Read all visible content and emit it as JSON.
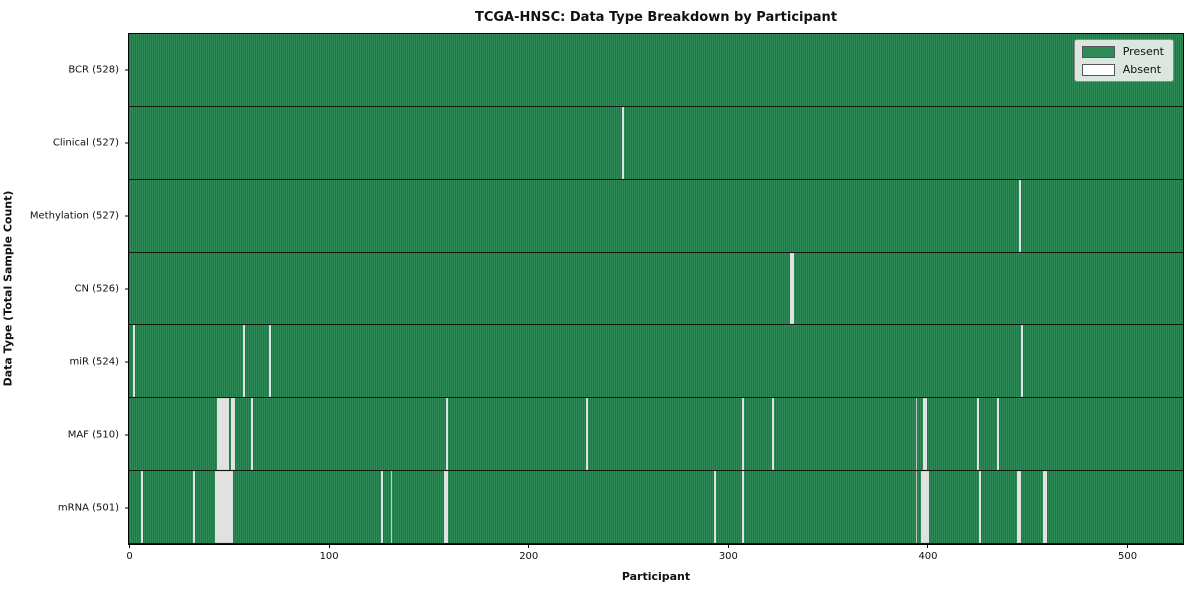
{
  "title": "TCGA-HNSC: Data Type Breakdown by Participant",
  "xlabel": "Participant",
  "ylabel": "Data Type (Total Sample Count)",
  "colors": {
    "present": "#2e8b57",
    "present_edge": "#1f5e3b",
    "absent": "#fbfbfb",
    "row_separator": "#101810",
    "legend_bg": "#eceeec"
  },
  "legend": {
    "entries": [
      {
        "label": "Present",
        "color": "#2e8b57"
      },
      {
        "label": "Absent",
        "color": "#ffffff"
      }
    ]
  },
  "chart_data": {
    "type": "heatmap",
    "title": "TCGA-HNSC: Data Type Breakdown by Participant",
    "xlabel": "Participant",
    "ylabel": "Data Type (Total Sample Count)",
    "legend_position": "upper right",
    "n_participants": 528,
    "x_ticks": [
      0,
      100,
      200,
      300,
      400,
      500
    ],
    "value_encoding": {
      "present": 1,
      "absent": 0
    },
    "rows": [
      {
        "label": "BCR (528)",
        "data_type": "BCR",
        "count": 528,
        "absent_participants": []
      },
      {
        "label": "Clinical (527)",
        "data_type": "Clinical",
        "count": 527,
        "absent_participants": [
          247
        ]
      },
      {
        "label": "Methylation (527)",
        "data_type": "Methylation",
        "count": 527,
        "absent_participants": [
          446
        ]
      },
      {
        "label": "CN (526)",
        "data_type": "CN",
        "count": 526,
        "absent_participants": [
          331,
          332
        ]
      },
      {
        "label": "miR (524)",
        "data_type": "miR",
        "count": 524,
        "absent_participants": [
          2,
          57,
          70,
          447
        ]
      },
      {
        "label": "MAF (510)",
        "data_type": "MAF",
        "count": 510,
        "absent_participants": [
          44,
          45,
          46,
          47,
          48,
          49,
          51,
          52,
          61,
          159,
          229,
          307,
          322,
          394,
          398,
          399,
          425,
          435
        ]
      },
      {
        "label": "mRNA (501)",
        "data_type": "mRNA",
        "count": 501,
        "absent_participants": [
          6,
          32,
          43,
          44,
          45,
          46,
          47,
          48,
          49,
          50,
          51,
          126,
          131,
          158,
          159,
          293,
          307,
          394,
          397,
          398,
          399,
          400,
          426,
          445,
          446,
          458,
          459
        ]
      }
    ]
  }
}
